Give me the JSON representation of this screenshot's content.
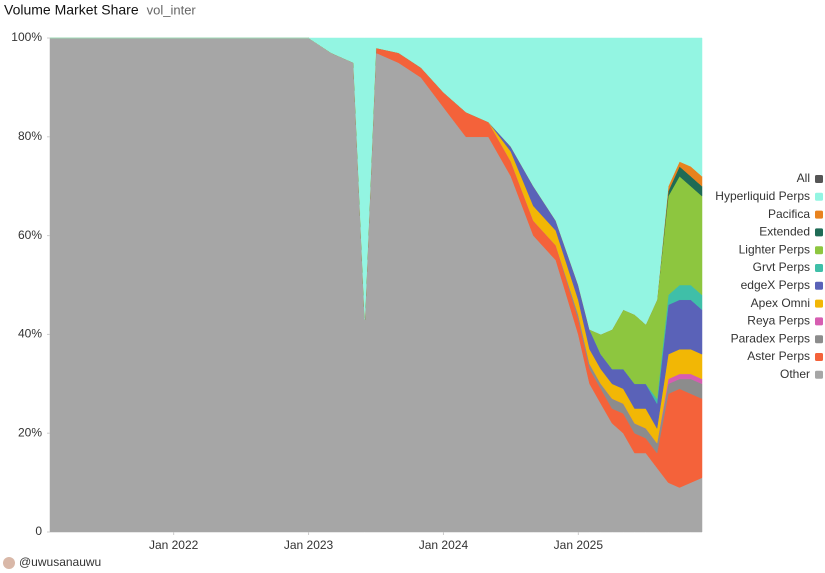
{
  "chart_data": {
    "type": "stacked_area_percent",
    "title": "Volume Market Share",
    "subtitle": "vol_inter",
    "x": [
      "2021-02",
      "2023-01",
      "2023-03",
      "2023-05",
      "2023-06",
      "2023-07",
      "2023-09",
      "2023-11",
      "2024-01",
      "2024-03",
      "2024-05",
      "2024-07",
      "2024-09",
      "2024-11",
      "2025-01",
      "2025-02",
      "2025-03",
      "2025-04",
      "2025-05",
      "2025-06",
      "2025-07",
      "2025-08",
      "2025-09",
      "2025-10",
      "2025-11",
      "2025-12"
    ],
    "xlim": [
      "2021-02",
      "2025-12"
    ],
    "xticks": [
      {
        "value": "2022-01",
        "label": "Jan 2022"
      },
      {
        "value": "2023-01",
        "label": "Jan 2023"
      },
      {
        "value": "2024-01",
        "label": "Jan 2024"
      },
      {
        "value": "2025-01",
        "label": "Jan 2025"
      }
    ],
    "ylim": [
      0,
      100
    ],
    "yticks": [
      0,
      {
        "value": 20,
        "label": "20%"
      },
      {
        "value": 40,
        "label": "40%"
      },
      {
        "value": 60,
        "label": "60%"
      },
      {
        "value": 80,
        "label": "80%"
      },
      {
        "value": 100,
        "label": "100%"
      }
    ],
    "legend": "right",
    "series": [
      {
        "name": "All",
        "color": "#555555",
        "values": [
          null,
          null,
          null,
          null,
          null,
          null,
          null,
          null,
          null,
          null,
          null,
          null,
          null,
          null,
          null,
          null,
          null,
          null,
          null,
          null,
          null,
          null,
          null,
          null,
          null,
          null
        ]
      },
      {
        "name": "Hyperliquid Perps",
        "color": "#93f5e2",
        "values": [
          0,
          0,
          3,
          5,
          57,
          2,
          3,
          6,
          11,
          15,
          17,
          22,
          30,
          37,
          50,
          59,
          60,
          59,
          55,
          56,
          58,
          53,
          30,
          25,
          26,
          28
        ]
      },
      {
        "name": "Pacifica",
        "color": "#e8821e",
        "values": [
          0,
          0,
          0,
          0,
          0,
          0,
          0,
          0,
          0,
          0,
          0,
          0,
          0,
          0,
          0,
          0,
          0,
          0,
          0,
          0,
          0,
          0,
          1,
          1,
          2,
          2
        ]
      },
      {
        "name": "Extended",
        "color": "#1f6b55",
        "values": [
          0,
          0,
          0,
          0,
          0,
          0,
          0,
          0,
          0,
          0,
          0,
          0,
          0,
          0,
          0,
          0,
          0,
          0,
          0,
          0,
          0,
          0,
          1,
          2,
          2,
          2
        ]
      },
      {
        "name": "Lighter Perps",
        "color": "#8dc63f",
        "values": [
          0,
          0,
          0,
          0,
          0,
          0,
          0,
          0,
          0,
          0,
          0,
          0,
          0,
          0,
          0,
          0,
          4,
          8,
          12,
          14,
          12,
          20,
          20,
          22,
          20,
          20
        ]
      },
      {
        "name": "Grvt Perps",
        "color": "#3fbfa8",
        "values": [
          0,
          0,
          0,
          0,
          0,
          0,
          0,
          0,
          0,
          0,
          0,
          0,
          0,
          0,
          0,
          0,
          0,
          0,
          0,
          0,
          0,
          1,
          2,
          3,
          3,
          3
        ]
      },
      {
        "name": "edgeX Perps",
        "color": "#5a62b8",
        "values": [
          0,
          0,
          0,
          0,
          0,
          0,
          0,
          0,
          0,
          0,
          0,
          1,
          4,
          2,
          3,
          4,
          3,
          3,
          4,
          5,
          5,
          5,
          10,
          10,
          10,
          9
        ]
      },
      {
        "name": "Apex Omni",
        "color": "#f2b705",
        "values": [
          0,
          0,
          0,
          0,
          0,
          0,
          0,
          0,
          0,
          0,
          0,
          2,
          3,
          3,
          3,
          3,
          3,
          3,
          3,
          3,
          4,
          3,
          5,
          5,
          5,
          5
        ]
      },
      {
        "name": "Reya Perps",
        "color": "#d65db1",
        "values": [
          0,
          0,
          0,
          0,
          0,
          0,
          0,
          0,
          0,
          0,
          0,
          0,
          0,
          0,
          0,
          0,
          0,
          0,
          0,
          0,
          0,
          0,
          1,
          1,
          1,
          1
        ]
      },
      {
        "name": "Paradex Perps",
        "color": "#8c8c8c",
        "values": [
          0,
          0,
          0,
          0,
          0,
          0,
          0,
          0,
          0,
          0,
          0,
          0,
          0,
          0,
          1,
          1,
          1,
          2,
          2,
          2,
          2,
          2,
          2,
          2,
          3,
          3
        ]
      },
      {
        "name": "Aster Perps",
        "color": "#f4623a",
        "values": [
          0,
          0,
          0,
          0,
          0,
          1,
          2,
          2,
          3,
          5,
          3,
          3,
          3,
          3,
          3,
          3,
          3,
          3,
          4,
          4,
          3,
          3,
          18,
          20,
          18,
          16
        ]
      },
      {
        "name": "Other",
        "color": "#a6a6a6",
        "values": [
          100,
          100,
          97,
          95,
          43,
          97,
          95,
          92,
          86,
          80,
          80,
          72,
          60,
          55,
          40,
          30,
          26,
          22,
          20,
          16,
          16,
          13,
          10,
          9,
          10,
          11
        ]
      }
    ]
  },
  "footer": {
    "author": "@uwusanauwu"
  }
}
